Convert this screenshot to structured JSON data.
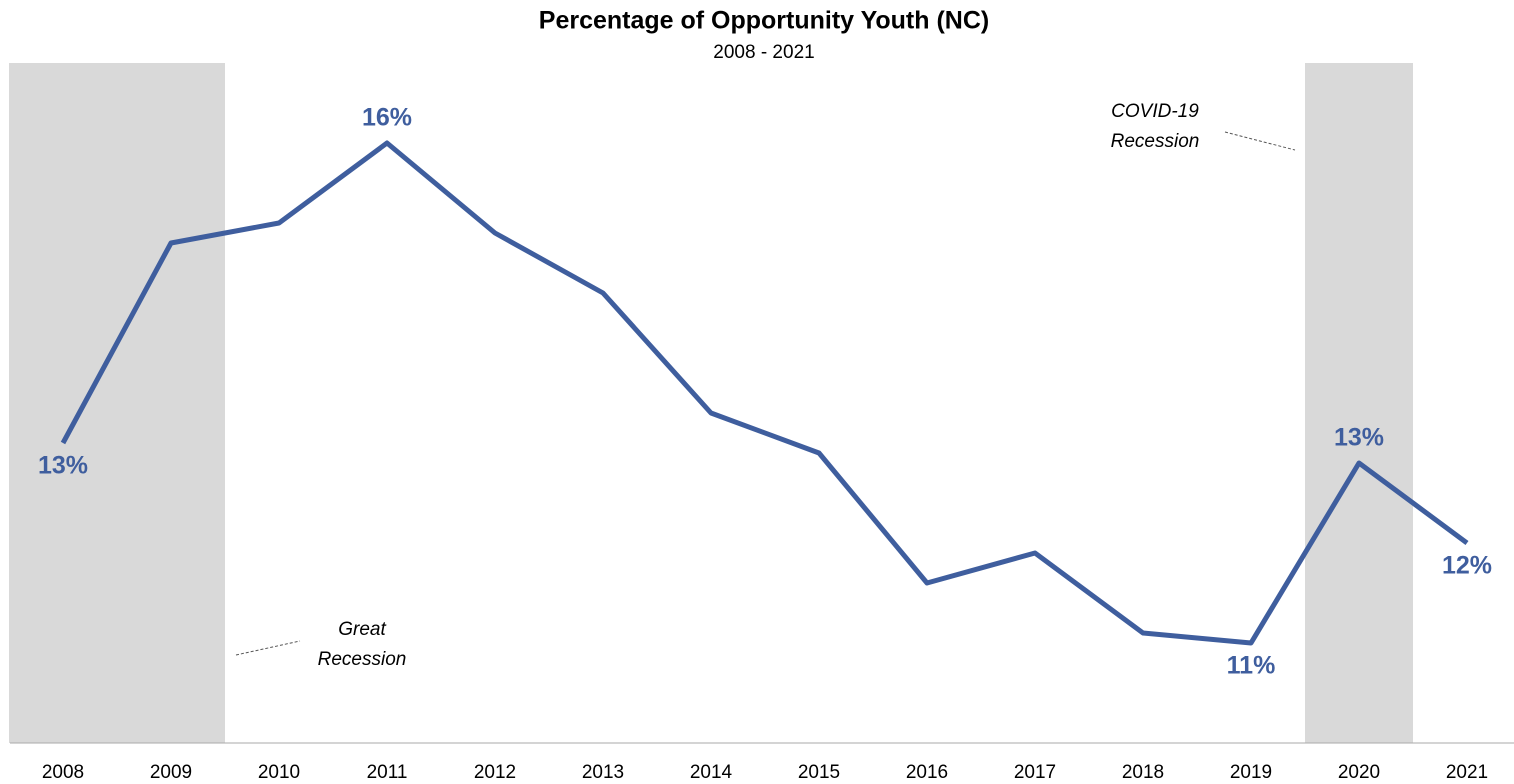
{
  "chart_data": {
    "type": "line",
    "title": "Percentage of Opportunity Youth (NC)",
    "subtitle": "2008 - 2021",
    "categories": [
      "2008",
      "2009",
      "2010",
      "2011",
      "2012",
      "2013",
      "2014",
      "2015",
      "2016",
      "2017",
      "2018",
      "2019",
      "2020",
      "2021"
    ],
    "series": [
      {
        "name": "Opportunity Youth",
        "color": "#3f5e9e",
        "values": [
          12.9,
          14.9,
          15.1,
          15.9,
          15.0,
          14.4,
          13.2,
          12.8,
          11.5,
          11.8,
          11.0,
          10.9,
          12.7,
          11.9
        ],
        "value_labels": [
          "13%",
          null,
          null,
          "16%",
          null,
          null,
          null,
          null,
          null,
          null,
          null,
          "11%",
          "13%",
          "12%"
        ]
      }
    ],
    "ylim": [
      9.9,
      16.7
    ],
    "grid": false,
    "recessions": [
      {
        "start": "2008",
        "end": "2009",
        "label_lines": [
          "Great",
          "Recession"
        ],
        "color": "#d9d9d9"
      },
      {
        "start": "2020",
        "end": "2020",
        "label_lines": [
          "COVID-19",
          "Recession"
        ],
        "color": "#d9d9d9"
      }
    ]
  }
}
